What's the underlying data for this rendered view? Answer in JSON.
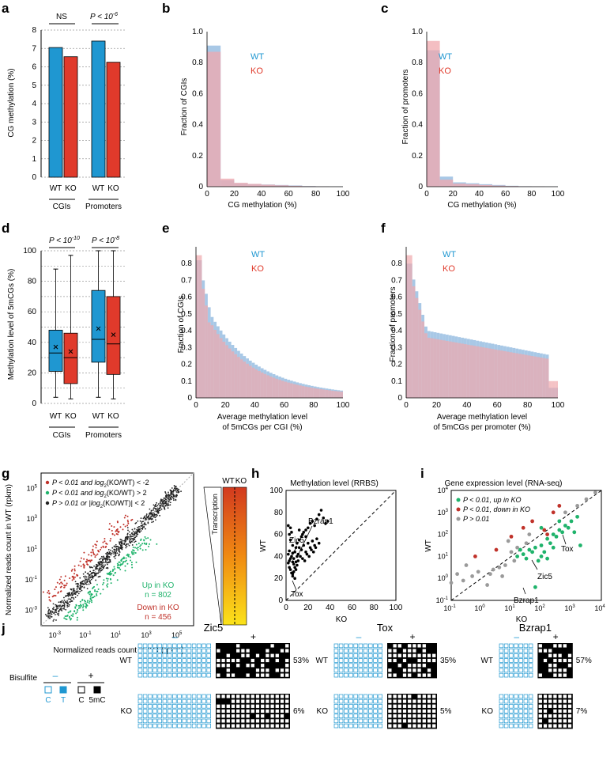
{
  "colors": {
    "wt": "#1f97d1",
    "ko": "#e03a2b",
    "wt_hist": "#a8c8e6",
    "ko_hist": "#f0a8ad",
    "green": "#1fb36b",
    "grey": "#9a9a9a"
  },
  "panels": {
    "a": "a",
    "b": "b",
    "c": "c",
    "d": "d",
    "e": "e",
    "f": "f",
    "g": "g",
    "h": "h",
    "i": "i",
    "j": "j"
  },
  "chart_data": [
    {
      "id": "a",
      "type": "bar",
      "ylabel": "CG methylation (%)",
      "ylim": [
        0,
        8
      ],
      "yticks": [
        "0",
        "1",
        "2",
        "3",
        "4",
        "5",
        "6",
        "7",
        "8"
      ],
      "groups": [
        "CGIs",
        "Promoters"
      ],
      "bar_labels": [
        "WT",
        "KO",
        "WT",
        "KO"
      ],
      "values": [
        7.05,
        6.55,
        7.4,
        6.25
      ],
      "significance": [
        "NS",
        "P < 10"
      ],
      "significance_exp": "-6"
    },
    {
      "id": "b",
      "type": "bar",
      "subtype": "histogram",
      "ylabel": "Fraction of CGIs",
      "xlabel": "CG methylation (%)",
      "xlim": [
        0,
        100
      ],
      "ylim": [
        0,
        1.0
      ],
      "xticks": [
        "0",
        "20",
        "40",
        "60",
        "80",
        "100"
      ],
      "yticks": [
        "0",
        "0.2",
        "0.4",
        "0.6",
        "0.8",
        "1.0"
      ],
      "bin_width": 10,
      "series": [
        {
          "name": "WT",
          "values": [
            0.91,
            0.043,
            0.022,
            0.017,
            0.014,
            0.011,
            0.008,
            0.004,
            0.002,
            0.001
          ]
        },
        {
          "name": "KO",
          "values": [
            0.87,
            0.052,
            0.025,
            0.018,
            0.013,
            0.009,
            0.006,
            0.003,
            0.001,
            0.0
          ]
        }
      ]
    },
    {
      "id": "c",
      "type": "bar",
      "subtype": "histogram",
      "ylabel": "Fraction of promoters",
      "xlabel": "CG methylation (%)",
      "xlim": [
        0,
        100
      ],
      "ylim": [
        0,
        1.0
      ],
      "xticks": [
        "0",
        "20",
        "40",
        "60",
        "80",
        "100"
      ],
      "yticks": [
        "0",
        "0.2",
        "0.4",
        "0.6",
        "0.8",
        "1.0"
      ],
      "bin_width": 10,
      "series": [
        {
          "name": "WT",
          "values": [
            0.88,
            0.065,
            0.028,
            0.022,
            0.016,
            0.011,
            0.006,
            0.003,
            0.002,
            0.001
          ]
        },
        {
          "name": "KO",
          "values": [
            0.94,
            0.045,
            0.02,
            0.016,
            0.011,
            0.007,
            0.004,
            0.002,
            0.001,
            0.0
          ]
        }
      ]
    },
    {
      "id": "d",
      "type": "box",
      "ylabel": "Methylation level of 5mCGs  (%)",
      "ylim": [
        0,
        100
      ],
      "yticks": [
        "0",
        "20",
        "40",
        "60",
        "80",
        "100"
      ],
      "groups": [
        "CGIs",
        "Promoters"
      ],
      "box_labels": [
        "WT",
        "KO",
        "WT",
        "KO"
      ],
      "boxes": [
        {
          "whisker_low": 4,
          "q1": 21,
          "median": 33,
          "q3": 48,
          "whisker_high": 88,
          "mean": 37
        },
        {
          "whisker_low": 3,
          "q1": 13,
          "median": 30,
          "q3": 46,
          "whisker_high": 97,
          "mean": 34
        },
        {
          "whisker_low": 4,
          "q1": 27,
          "median": 42,
          "q3": 74,
          "whisker_high": 100,
          "mean": 49
        },
        {
          "whisker_low": 3,
          "q1": 19,
          "median": 39,
          "q3": 70,
          "whisker_high": 100,
          "mean": 45
        }
      ],
      "significance": [
        "P < 10",
        "P < 10"
      ],
      "significance_exp": [
        "-10",
        "-8"
      ]
    },
    {
      "id": "e",
      "type": "bar",
      "subtype": "histogram",
      "ylabel": "Fraction of CGIs",
      "xlabel": [
        "Average methylation level",
        "of 5mCGs per CGI  (%)"
      ],
      "xlim": [
        0,
        100
      ],
      "ylim": [
        0,
        0.9
      ],
      "xticks": [
        "0",
        "20",
        "40",
        "60",
        "80",
        "100"
      ],
      "yticks": [
        "0",
        "0.1",
        "0.2",
        "0.3",
        "0.4",
        "0.5",
        "0.6",
        "0.7",
        "0.8"
      ],
      "bin_width": 2
    },
    {
      "id": "f",
      "type": "bar",
      "subtype": "histogram",
      "ylabel": "Fraction of promoters",
      "xlabel": [
        "Average methylation level",
        "of 5mCGs per promoter  (%)"
      ],
      "xlim": [
        0,
        100
      ],
      "ylim": [
        0,
        0.9
      ],
      "xticks": [
        "0",
        "20",
        "40",
        "60",
        "80",
        "100"
      ],
      "yticks": [
        "0",
        "0.1",
        "0.2",
        "0.3",
        "0.4",
        "0.5",
        "0.6",
        "0.7",
        "0.8"
      ],
      "bin_width": 2
    },
    {
      "id": "g",
      "type": "scatter",
      "xlabel": "Normalized reads count in KO (rpkm)",
      "ylabel": "Normalized reads count in WT (rpkm)",
      "log_ticks_exp": [
        "-3",
        "-1",
        "1",
        "3",
        "5"
      ],
      "legend": [
        "P < 0.01 and log",
        "(KO/WT) < -2",
        "P < 0.01 and log",
        "(KO/WT) > 2",
        "P > 0.01 or |log",
        "(KO/WT)| < 2"
      ],
      "annotations": [
        "Up in KO",
        "n = 802",
        "Down in KO",
        "n = 456"
      ],
      "heatmap_labels": [
        "WT",
        "KO",
        "Transcription"
      ]
    },
    {
      "id": "h",
      "type": "scatter",
      "title": "Methylation level (RRBS)",
      "xlabel": "KO",
      "ylabel": "WT",
      "xlim": [
        0,
        100
      ],
      "ylim": [
        0,
        100
      ],
      "xticks": [
        "0",
        "20",
        "40",
        "60",
        "80",
        "100"
      ],
      "yticks": [
        "0",
        "20",
        "40",
        "60",
        "80",
        "100"
      ],
      "labels": [
        "Zic5",
        "Bzrap1",
        "Tox"
      ],
      "points": [
        [
          2,
          68
        ],
        [
          3,
          60
        ],
        [
          4,
          55
        ],
        [
          5,
          62
        ],
        [
          6,
          50
        ],
        [
          3,
          45
        ],
        [
          2,
          42
        ],
        [
          5,
          40
        ],
        [
          7,
          38
        ],
        [
          8,
          44
        ],
        [
          9,
          48
        ],
        [
          10,
          52
        ],
        [
          12,
          55
        ],
        [
          14,
          58
        ],
        [
          15,
          60
        ],
        [
          16,
          62
        ],
        [
          18,
          64
        ],
        [
          20,
          66
        ],
        [
          22,
          70
        ],
        [
          24,
          72
        ],
        [
          26,
          68
        ],
        [
          28,
          74
        ],
        [
          30,
          78
        ],
        [
          32,
          82
        ],
        [
          34,
          75
        ],
        [
          36,
          70
        ],
        [
          38,
          72
        ],
        [
          12,
          48
        ],
        [
          14,
          46
        ],
        [
          16,
          50
        ],
        [
          18,
          44
        ],
        [
          20,
          52
        ],
        [
          22,
          48
        ],
        [
          24,
          54
        ],
        [
          26,
          50
        ],
        [
          28,
          56
        ],
        [
          30,
          52
        ],
        [
          6,
          35
        ],
        [
          7,
          33
        ],
        [
          8,
          30
        ],
        [
          9,
          28
        ],
        [
          10,
          32
        ],
        [
          11,
          36
        ],
        [
          3,
          30
        ],
        [
          4,
          28
        ],
        [
          5,
          25
        ],
        [
          6,
          22
        ],
        [
          7,
          26
        ],
        [
          8,
          20
        ],
        [
          2,
          34
        ],
        [
          3,
          36
        ],
        [
          4,
          38
        ],
        [
          10,
          40
        ],
        [
          11,
          42
        ],
        [
          13,
          40
        ],
        [
          15,
          38
        ],
        [
          17,
          36
        ],
        [
          19,
          42
        ],
        [
          21,
          40
        ],
        [
          23,
          46
        ],
        [
          25,
          44
        ],
        [
          27,
          48
        ],
        [
          6,
          43
        ],
        [
          9,
          35
        ],
        [
          4,
          66
        ],
        [
          12,
          64
        ],
        [
          18,
          58
        ],
        [
          6,
          24
        ]
      ]
    },
    {
      "id": "i",
      "type": "scatter",
      "title": "Gene expression level (RNA-seq)",
      "xlabel": "KO",
      "ylabel": "WT",
      "log_ticks_exp": [
        "-1",
        "0",
        "1",
        "2",
        "3",
        "4"
      ],
      "legend": [
        "P < 0.01, up in KO",
        "P < 0.01, down in KO",
        "P > 0.01"
      ],
      "labels": [
        "Tox",
        "Zic5",
        "Bzrap1"
      ],
      "points_up": [
        [
          1.2,
          1.0
        ],
        [
          1.4,
          1.1
        ],
        [
          1.6,
          1.3
        ],
        [
          1.8,
          1.4
        ],
        [
          2.0,
          1.5
        ],
        [
          2.2,
          1.8
        ],
        [
          2.4,
          2.0
        ],
        [
          2.6,
          2.2
        ],
        [
          2.8,
          2.4
        ],
        [
          3.0,
          2.6
        ],
        [
          3.2,
          2.8
        ],
        [
          1.9,
          0.8
        ],
        [
          2.1,
          1.2
        ],
        [
          2.3,
          1.6
        ],
        [
          2.5,
          1.9
        ],
        [
          2.7,
          2.1
        ],
        [
          1.5,
          0.9
        ],
        [
          1.7,
          1.2
        ],
        [
          2.0,
          1.0
        ],
        [
          2.4,
          1.4
        ],
        [
          2.9,
          2.3
        ],
        [
          3.1,
          2.1
        ],
        [
          1.8,
          -0.4
        ],
        [
          2.2,
          0.9
        ],
        [
          3.3,
          1.5
        ],
        [
          2.6,
          2.6
        ],
        [
          2.0,
          2.3
        ],
        [
          1.3,
          1.3
        ]
      ],
      "points_down": [
        [
          -0.2,
          1.0
        ],
        [
          0.5,
          1.3
        ],
        [
          1.0,
          1.9
        ],
        [
          1.4,
          2.3
        ],
        [
          1.7,
          2.6
        ],
        [
          2.1,
          2.2
        ],
        [
          2.4,
          3.0
        ],
        [
          2.6,
          3.3
        ],
        [
          2.2,
          2.0
        ]
      ],
      "points_ns": [
        [
          -1.0,
          -0.2
        ],
        [
          -0.8,
          0.2
        ],
        [
          -0.6,
          -0.1
        ],
        [
          -0.3,
          0.1
        ],
        [
          -0.1,
          0.3
        ],
        [
          0.2,
          -0.3
        ],
        [
          0.4,
          0.4
        ],
        [
          0.6,
          0.5
        ],
        [
          0.8,
          0.6
        ],
        [
          1.0,
          1.2
        ],
        [
          1.2,
          1.4
        ],
        [
          0.3,
          0.2
        ],
        [
          0.7,
          0.1
        ],
        [
          1.5,
          1.6
        ],
        [
          2.8,
          3.0
        ],
        [
          3.2,
          3.3
        ],
        [
          3.5,
          3.6
        ],
        [
          3.8,
          3.9
        ],
        [
          1.1,
          0.8
        ],
        [
          -0.5,
          0.6
        ],
        [
          0.9,
          1.7
        ],
        [
          1.6,
          2.0
        ]
      ]
    },
    {
      "id": "j",
      "type": "heatmap",
      "legend_title": "Bisulfite",
      "legend_minus": "–",
      "legend_plus": "+",
      "legend_labels": [
        "C",
        "T",
        "C",
        "5mC"
      ],
      "genes": [
        {
          "name": "Zic5",
          "minus": "–",
          "plus": "+",
          "wt_pct": "53%",
          "ko_pct": "6%",
          "rows": 7,
          "cols": 15
        },
        {
          "name": "Tox",
          "minus": "–",
          "plus": "+",
          "wt_pct": "35%",
          "ko_pct": "5%",
          "rows": 7,
          "cols": 10
        },
        {
          "name": "Bzrap1",
          "minus": "–",
          "plus": "+",
          "wt_pct": "57%",
          "ko_pct": "7%",
          "rows": 7,
          "cols": 7
        }
      ],
      "row_labels": [
        "WT",
        "KO"
      ]
    }
  ]
}
